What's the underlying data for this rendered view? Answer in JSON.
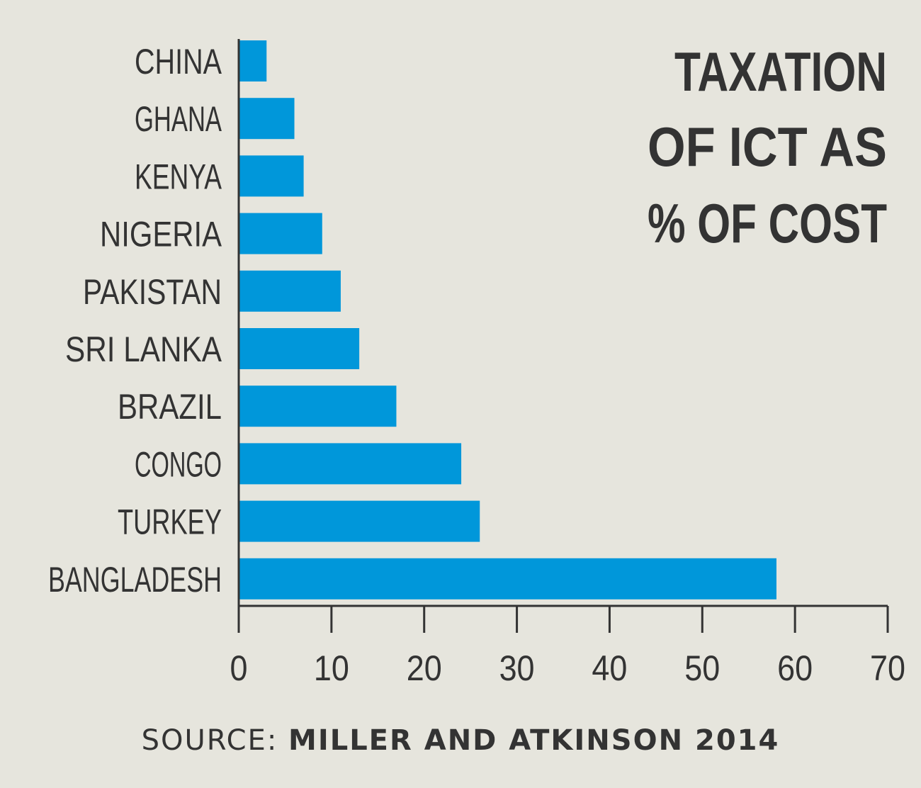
{
  "chart_data": {
    "type": "bar",
    "orientation": "horizontal",
    "title_lines": [
      "TAXATION",
      "OF ICT AS",
      "% OF COST"
    ],
    "categories": [
      "CHINA",
      "GHANA",
      "KENYA",
      "NIGERIA",
      "PAKISTAN",
      "SRI LANKA",
      "BRAZIL",
      "CONGO",
      "TURKEY",
      "BANGLADESH"
    ],
    "values": [
      3,
      6,
      7,
      9,
      11,
      13,
      17,
      24,
      26,
      58
    ],
    "xlim": [
      0,
      70
    ],
    "xticks": [
      "0",
      "10",
      "20",
      "30",
      "40",
      "50",
      "60",
      "70"
    ],
    "grid": false,
    "bar_color": "#0097da",
    "text_color": "#333333"
  },
  "source": {
    "prefix": "SOURCE:",
    "text": "MILLER AND ATKINSON 2014"
  }
}
